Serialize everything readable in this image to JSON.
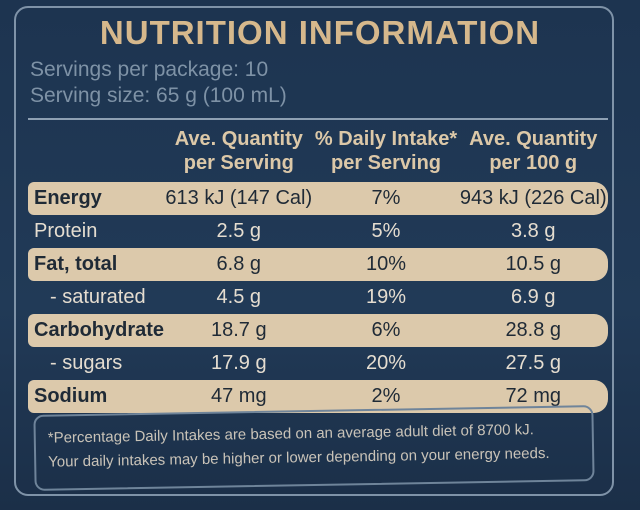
{
  "title": "NUTRITION INFORMATION",
  "servings": [
    "Servings per package: 10",
    "Serving size: 65 g (100 mL)"
  ],
  "table": {
    "header": [
      [
        "Ave. Quantity",
        "per Serving"
      ],
      [
        "% Daily Intake*",
        "per Serving"
      ],
      [
        "Ave. Quantity",
        "per 100 g"
      ]
    ],
    "rows": [
      [
        "Energy",
        "613 kJ (147 Cal)",
        "7%",
        "943 kJ (226 Cal)"
      ],
      [
        "Protein",
        "2.5 g",
        "5%",
        "3.8 g"
      ],
      [
        "Fat, total",
        "6.8 g",
        "10%",
        "10.5 g"
      ],
      [
        "- saturated",
        "4.5 g",
        "19%",
        "6.9 g"
      ],
      [
        "Carbohydrate",
        "18.7 g",
        "6%",
        "28.8 g"
      ],
      [
        "- sugars",
        "17.9 g",
        "20%",
        "27.5 g"
      ],
      [
        "Sodium",
        "47 mg",
        "2%",
        "72 mg"
      ]
    ]
  },
  "footnote": [
    "*Percentage Daily Intakes are based on an average adult diet of 8700 kJ.",
    "Your daily intakes may be higher or lower depending on your energy needs."
  ]
}
